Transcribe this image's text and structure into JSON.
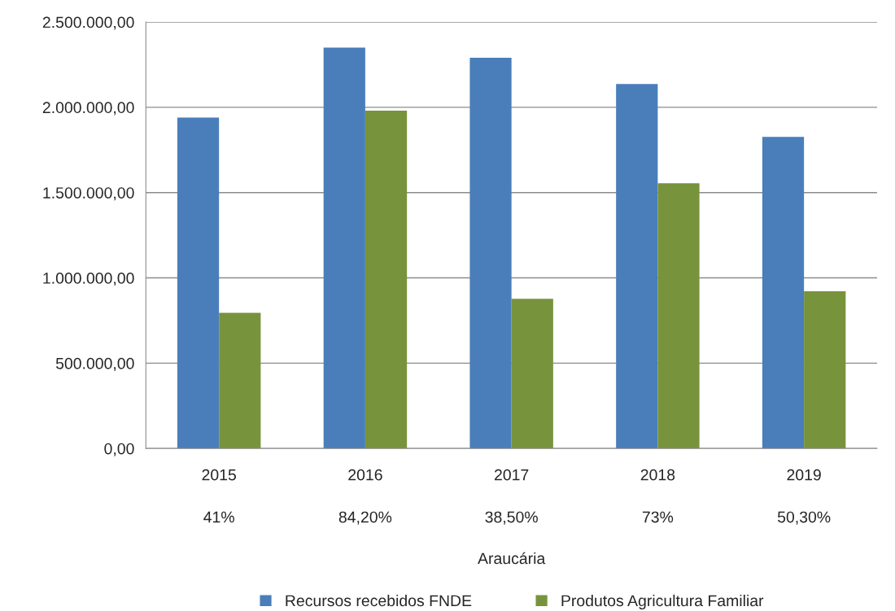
{
  "chart_data": {
    "type": "bar",
    "categories": [
      "2015",
      "2016",
      "2017",
      "2018",
      "2019"
    ],
    "series": [
      {
        "name": "Recursos recebidos FNDE",
        "color": "#4a7ebb",
        "values": [
          1940000,
          2350000,
          2290000,
          2137000,
          1827000
        ]
      },
      {
        "name": "Produtos Agricultura Familiar",
        "color": "#77933c",
        "values": [
          795000,
          1980000,
          878000,
          1555000,
          921000
        ]
      }
    ],
    "xlabel": "Araucária",
    "annotations": [
      "41%",
      "84,20%",
      "38,50%",
      "73%",
      "50,30%"
    ],
    "ylim": [
      0,
      2500000
    ],
    "yticks": [
      {
        "value": 0,
        "label": "0,00"
      },
      {
        "value": 500000,
        "label": "500.000,00"
      },
      {
        "value": 1000000,
        "label": "1.000.000,00"
      },
      {
        "value": 1500000,
        "label": "1.500.000,00"
      },
      {
        "value": 2000000,
        "label": "2.000.000,00"
      },
      {
        "value": 2500000,
        "label": "2.500.000,00"
      }
    ],
    "grid": "y",
    "legend": "bottom"
  }
}
